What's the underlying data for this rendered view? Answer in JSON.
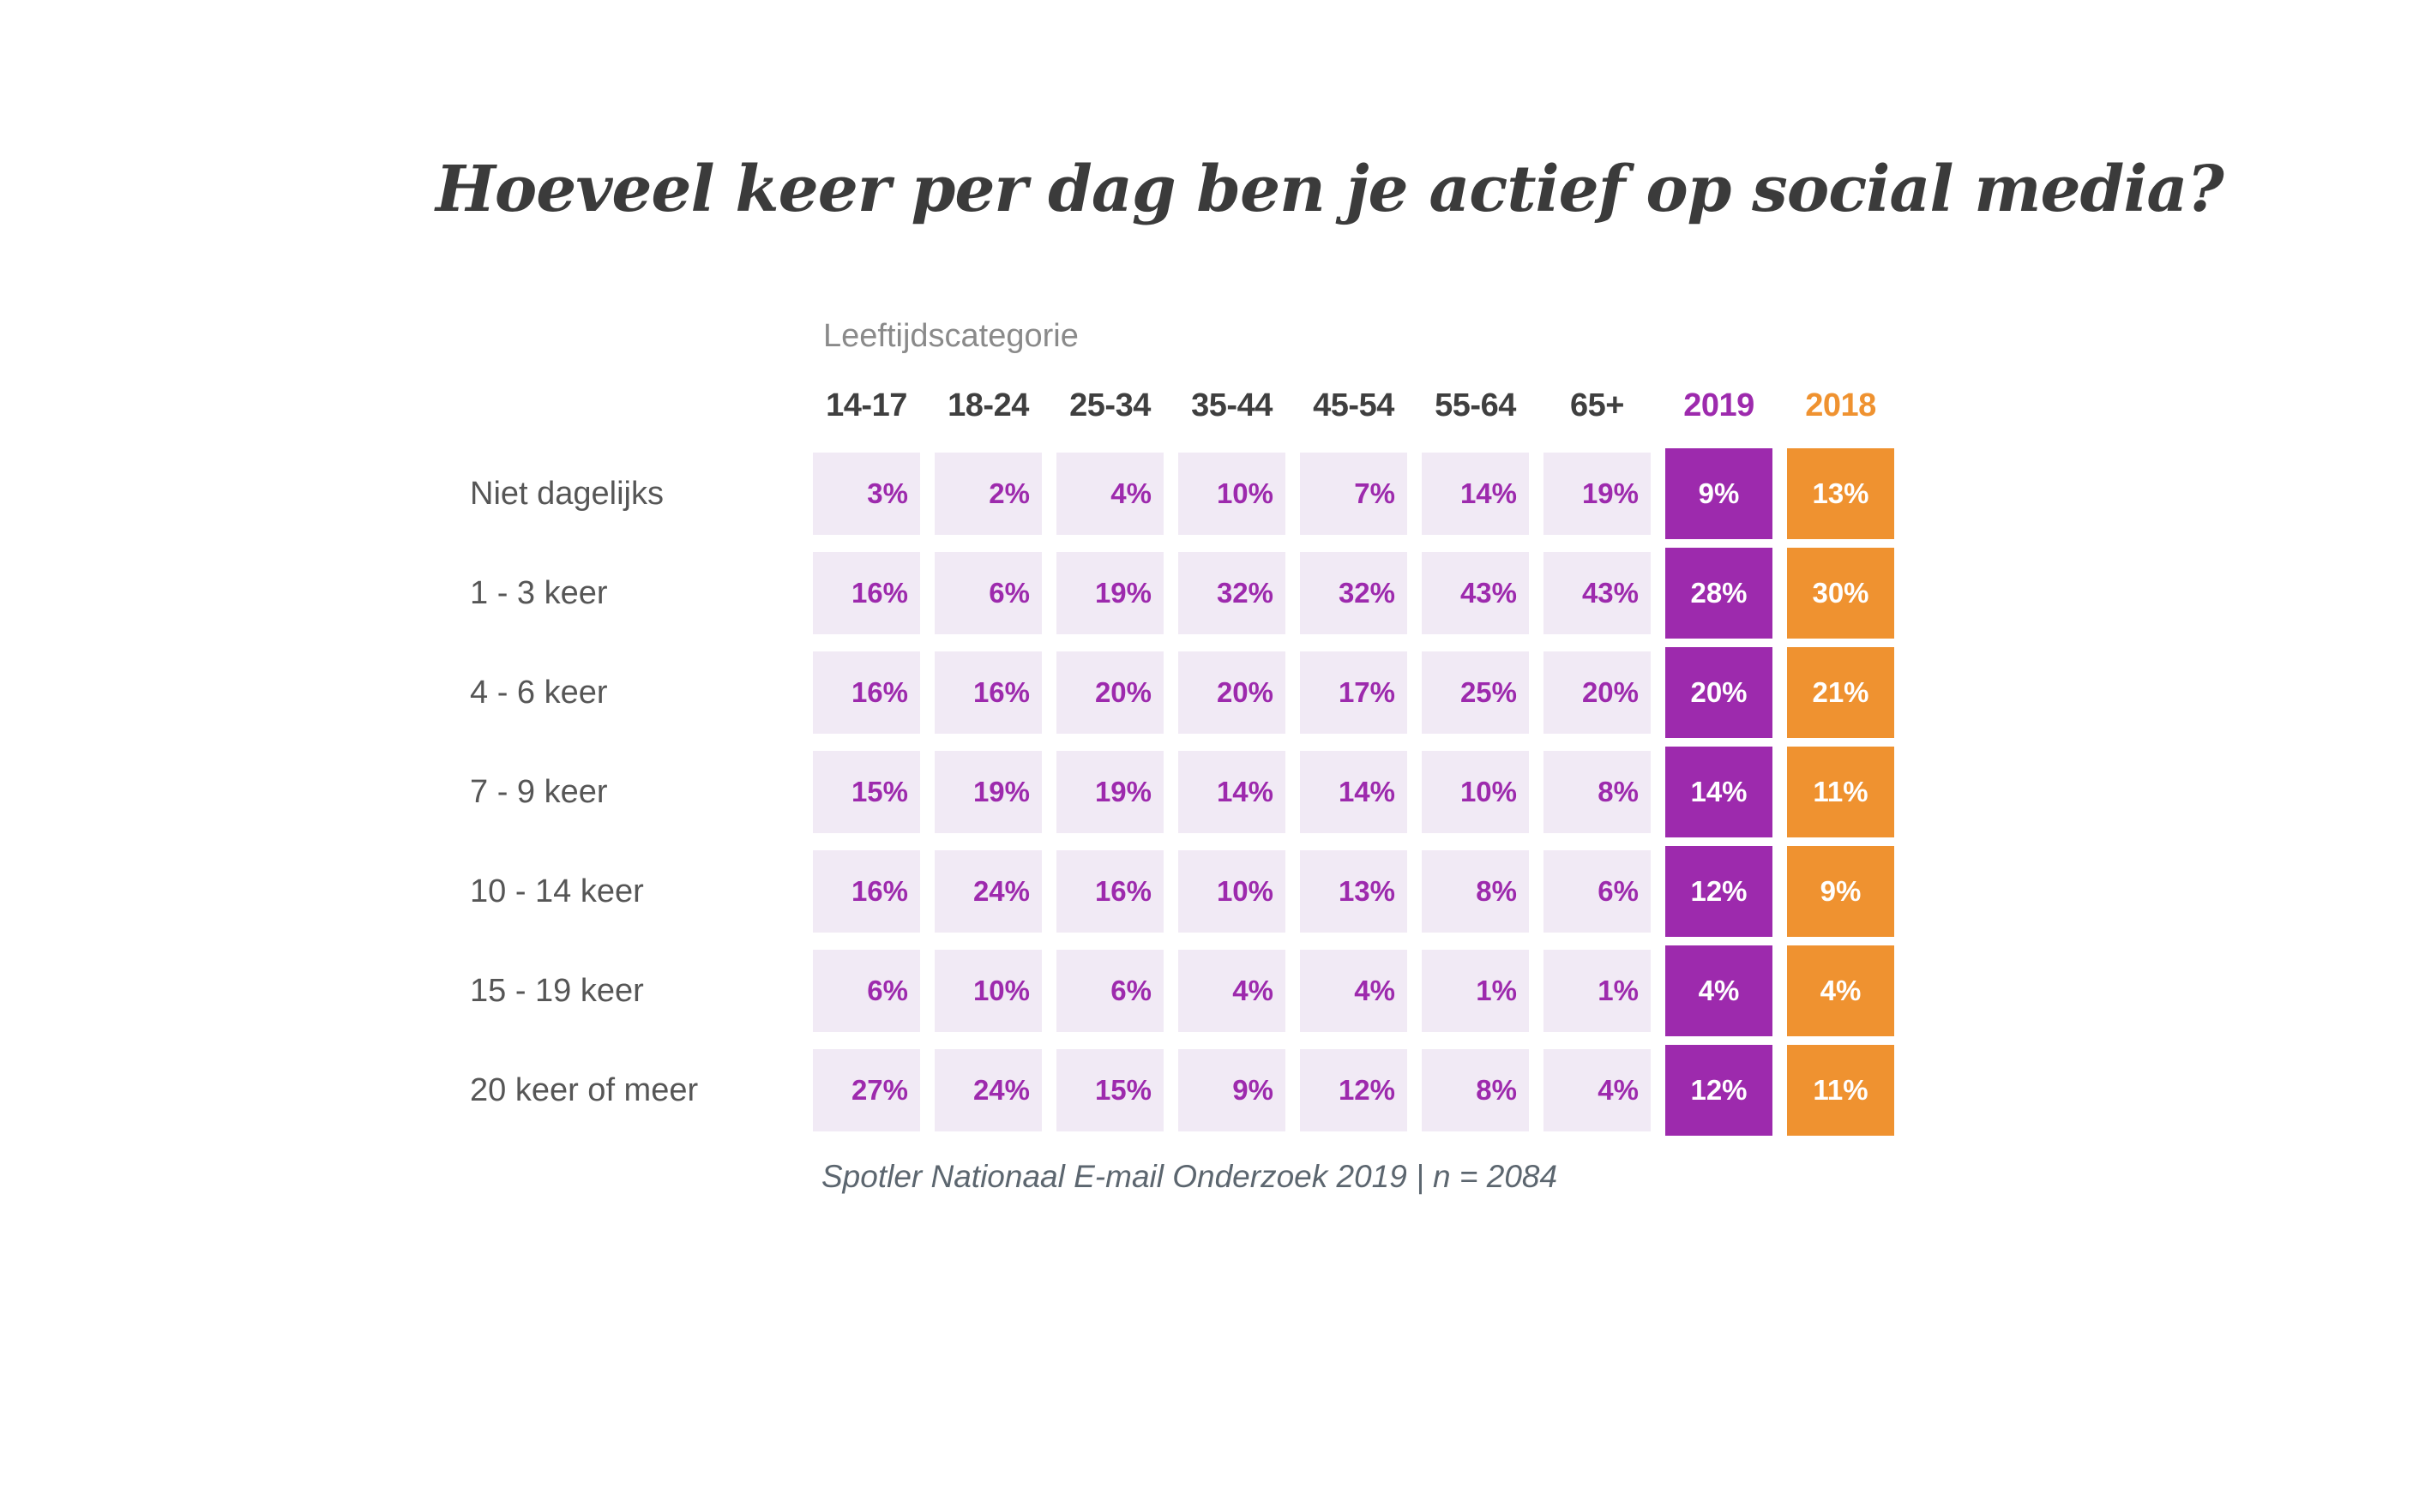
{
  "title": "Hoeveel keer per dag ben je actief op social media?",
  "colors": {
    "purple": "#9d2aad",
    "orange": "#ef9230",
    "cell_background": "#f1eaf5",
    "cell_text": "#9d2aad",
    "header_text": "#3f3f3f",
    "row_label_text": "#565656",
    "group_label_text": "#8a8a8a",
    "title_text": "#3b3b3b",
    "note_text": "#5c666f"
  },
  "chart_data": {
    "type": "heatmap",
    "title": "Hoeveel keer per dag ben je actief op social media?",
    "column_group_label": "Leeftijdscategorie",
    "columns": [
      "14-17",
      "18-24",
      "25-34",
      "35-44",
      "45-54",
      "55-64",
      "65+",
      "2019",
      "2018"
    ],
    "highlight_columns": {
      "2019": "#9d2aad",
      "2018": "#ef9230"
    },
    "rows": [
      {
        "label": "Niet dagelijks",
        "values": [
          "3%",
          "2%",
          "4%",
          "10%",
          "7%",
          "14%",
          "19%",
          "9%",
          "13%"
        ]
      },
      {
        "label": "1 - 3 keer",
        "values": [
          "16%",
          "6%",
          "19%",
          "32%",
          "32%",
          "43%",
          "43%",
          "28%",
          "30%"
        ]
      },
      {
        "label": "4 - 6 keer",
        "values": [
          "16%",
          "16%",
          "20%",
          "20%",
          "17%",
          "25%",
          "20%",
          "20%",
          "21%"
        ]
      },
      {
        "label": "7 - 9 keer",
        "values": [
          "15%",
          "19%",
          "19%",
          "14%",
          "14%",
          "10%",
          "8%",
          "14%",
          "11%"
        ]
      },
      {
        "label": "10 - 14 keer",
        "values": [
          "16%",
          "24%",
          "16%",
          "10%",
          "13%",
          "8%",
          "6%",
          "12%",
          "9%"
        ]
      },
      {
        "label": "15 - 19 keer",
        "values": [
          "6%",
          "10%",
          "6%",
          "4%",
          "4%",
          "1%",
          "1%",
          "4%",
          "4%"
        ]
      },
      {
        "label": "20 keer of meer",
        "values": [
          "27%",
          "24%",
          "15%",
          "9%",
          "12%",
          "8%",
          "4%",
          "12%",
          "11%"
        ]
      }
    ],
    "source": "Spotler Nationaal E-mail Onderzoek 2019 | n = 2084"
  }
}
